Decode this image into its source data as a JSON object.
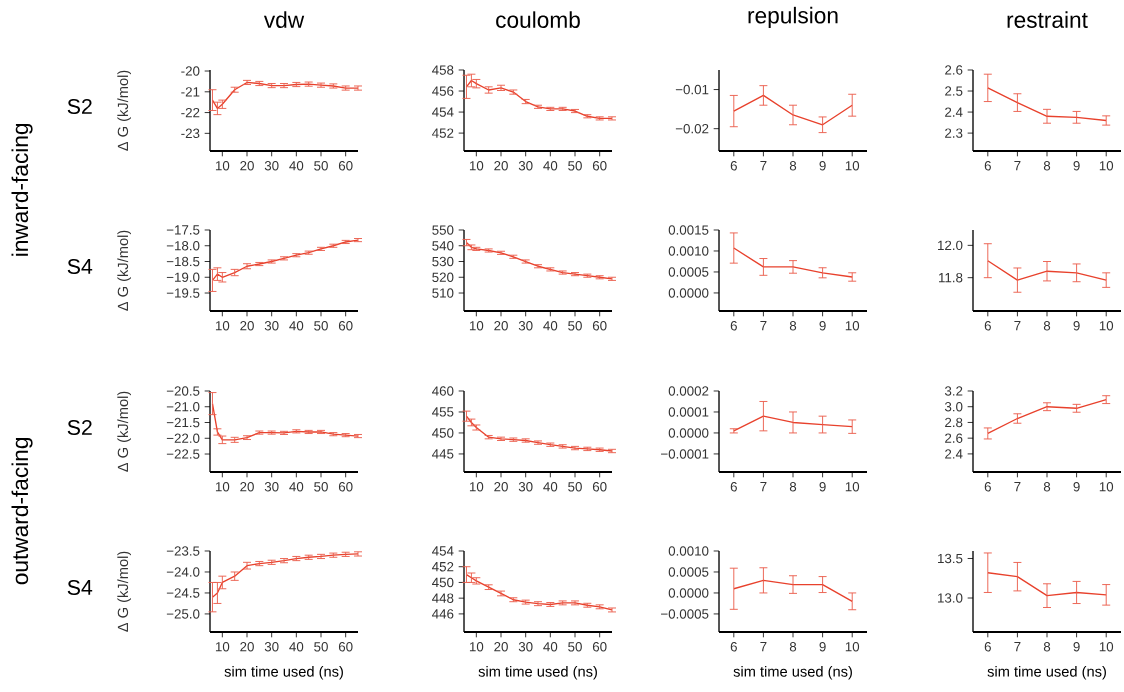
{
  "chart_data": [
    {
      "type": "line",
      "title": "vdw",
      "ylabel": "Δ G (kJ/mol)",
      "annotations": [
        "S2",
        "inward-facing"
      ],
      "color": "#e8412c",
      "x": [
        6,
        8,
        10,
        15,
        20,
        25,
        30,
        35,
        40,
        45,
        50,
        55,
        60,
        65
      ],
      "values": [
        -21.4,
        -21.8,
        -21.6,
        -20.9,
        -20.55,
        -20.6,
        -20.7,
        -20.7,
        -20.65,
        -20.63,
        -20.68,
        -20.72,
        -20.82,
        -20.82
      ],
      "errors": [
        0.5,
        0.3,
        0.2,
        0.12,
        0.1,
        0.1,
        0.1,
        0.1,
        0.1,
        0.1,
        0.1,
        0.1,
        0.1,
        0.1
      ],
      "xlim": [
        5,
        65
      ],
      "ylim": [
        -23.85,
        -19.95
      ],
      "xticks": [
        10,
        20,
        30,
        40,
        50,
        60
      ],
      "yticks": [
        -23,
        -22,
        -21,
        -20
      ]
    },
    {
      "type": "line",
      "title": "coulomb",
      "color": "#e8412c",
      "x": [
        6,
        8,
        10,
        15,
        20,
        25,
        30,
        35,
        40,
        45,
        50,
        55,
        60,
        65
      ],
      "values": [
        456.4,
        457.0,
        456.7,
        456.1,
        456.3,
        455.9,
        455.0,
        454.5,
        454.3,
        454.3,
        454.1,
        453.6,
        453.4,
        453.4
      ],
      "errors": [
        1.1,
        0.6,
        0.4,
        0.3,
        0.25,
        0.2,
        0.2,
        0.15,
        0.15,
        0.15,
        0.15,
        0.15,
        0.15,
        0.15
      ],
      "xlim": [
        5,
        65
      ],
      "ylim": [
        450.3,
        458
      ],
      "xticks": [
        10,
        20,
        30,
        40,
        50,
        60
      ],
      "yticks": [
        452,
        454,
        456,
        458
      ]
    },
    {
      "type": "line",
      "title": "repulsion",
      "color": "#e8412c",
      "x": [
        6,
        7,
        8,
        9,
        10
      ],
      "values": [
        -0.0155,
        -0.0115,
        -0.0165,
        -0.019,
        -0.014
      ],
      "errors": [
        0.004,
        0.0025,
        0.0025,
        0.002,
        0.0028
      ],
      "xlim": [
        5.5,
        10.5
      ],
      "ylim": [
        -0.0257,
        -0.005
      ],
      "xticks": [
        6,
        7,
        8,
        9,
        10
      ],
      "yticks": [
        {
          "value": -0.02,
          "label": "−0.02"
        },
        {
          "value": -0.01,
          "label": "−0.01"
        }
      ]
    },
    {
      "type": "line",
      "title": "restraint",
      "color": "#e8412c",
      "x": [
        6,
        7,
        8,
        9,
        10
      ],
      "values": [
        2.515,
        2.445,
        2.38,
        2.375,
        2.36
      ],
      "errors": [
        0.065,
        0.042,
        0.033,
        0.028,
        0.022
      ],
      "xlim": [
        5.5,
        10.5
      ],
      "ylim": [
        2.215,
        2.6
      ],
      "xticks": [
        6,
        7,
        8,
        9,
        10
      ],
      "yticks": [
        2.3,
        2.4,
        2.5,
        2.6
      ]
    },
    {
      "type": "line",
      "ylabel": "Δ G (kJ/mol)",
      "annotations": [
        "S4"
      ],
      "color": "#e8412c",
      "x": [
        6,
        8,
        10,
        15,
        20,
        25,
        30,
        35,
        40,
        45,
        50,
        55,
        60,
        65
      ],
      "values": [
        -19.1,
        -18.9,
        -19.0,
        -18.85,
        -18.65,
        -18.58,
        -18.5,
        -18.4,
        -18.3,
        -18.22,
        -18.1,
        -18.0,
        -17.88,
        -17.82
      ],
      "errors": [
        0.35,
        0.2,
        0.15,
        0.1,
        0.08,
        0.05,
        0.05,
        0.05,
        0.05,
        0.05,
        0.05,
        0.05,
        0.05,
        0.05
      ],
      "xlim": [
        5,
        65
      ],
      "ylim": [
        -20.07,
        -17.5
      ],
      "xticks": [
        10,
        20,
        30,
        40,
        50,
        60
      ],
      "yticks": [
        {
          "value": -19.5,
          "label": "−19.5"
        },
        {
          "value": -19,
          "label": "−19.0"
        },
        {
          "value": -18.5,
          "label": "−18.5"
        },
        {
          "value": -18,
          "label": "−18.0"
        },
        {
          "value": -17.5,
          "label": "−17.5"
        }
      ]
    },
    {
      "type": "line",
      "color": "#e8412c",
      "x": [
        6,
        8,
        10,
        15,
        20,
        25,
        30,
        35,
        40,
        45,
        50,
        55,
        60,
        65
      ],
      "values": [
        542,
        539,
        538,
        537,
        535.5,
        533,
        530,
        527,
        525,
        523,
        522,
        521,
        520,
        519
      ],
      "errors": [
        2,
        1.5,
        1,
        1,
        1,
        1,
        1,
        1,
        1,
        1,
        1,
        1,
        1,
        1
      ],
      "xlim": [
        5,
        65
      ],
      "ylim": [
        498.6,
        550
      ],
      "xticks": [
        10,
        20,
        30,
        40,
        50,
        60
      ],
      "yticks": [
        510,
        520,
        530,
        540,
        550
      ]
    },
    {
      "type": "line",
      "color": "#e8412c",
      "x": [
        6,
        7,
        8,
        9,
        10
      ],
      "values": [
        0.00107,
        0.00062,
        0.00062,
        0.00048,
        0.00038
      ],
      "errors": [
        0.00036,
        0.0002,
        0.00015,
        0.00012,
        0.0001
      ],
      "xlim": [
        5.5,
        10.5
      ],
      "ylim": [
        -0.00043,
        0.0015
      ],
      "xticks": [
        6,
        7,
        8,
        9,
        10
      ],
      "yticks": [
        {
          "value": 0,
          "label": "0.0000"
        },
        {
          "value": 0.0005,
          "label": "0.0005"
        },
        {
          "value": 0.001,
          "label": "0.0010"
        },
        {
          "value": 0.0015,
          "label": "0.0015"
        }
      ]
    },
    {
      "type": "line",
      "color": "#e8412c",
      "x": [
        6,
        7,
        8,
        9,
        10
      ],
      "values": [
        11.905,
        11.785,
        11.84,
        11.83,
        11.785
      ],
      "errors": [
        0.105,
        0.075,
        0.06,
        0.055,
        0.045
      ],
      "xlim": [
        5.5,
        10.5
      ],
      "ylim": [
        11.594,
        12.095
      ],
      "xticks": [
        6,
        7,
        8,
        9,
        10
      ],
      "yticks": [
        11.8,
        {
          "value": 12,
          "label": "12.0"
        }
      ]
    },
    {
      "type": "line",
      "ylabel": "Δ G (kJ/mol)",
      "annotations": [
        "S2",
        "outward-facing"
      ],
      "color": "#e8412c",
      "x": [
        6,
        8,
        10,
        15,
        20,
        25,
        30,
        35,
        40,
        45,
        50,
        55,
        60,
        65
      ],
      "values": [
        -20.9,
        -21.8,
        -22.05,
        -22.05,
        -21.98,
        -21.82,
        -21.82,
        -21.83,
        -21.78,
        -21.8,
        -21.8,
        -21.87,
        -21.9,
        -21.93
      ],
      "errors": [
        0.35,
        0.1,
        0.12,
        0.08,
        0.06,
        0.05,
        0.05,
        0.05,
        0.05,
        0.05,
        0.05,
        0.05,
        0.05,
        0.05
      ],
      "xlim": [
        5,
        65
      ],
      "ylim": [
        -23.07,
        -20.5
      ],
      "xticks": [
        10,
        20,
        30,
        40,
        50,
        60
      ],
      "yticks": [
        {
          "value": -22.5,
          "label": "−22.5"
        },
        {
          "value": -22,
          "label": "−22.0"
        },
        {
          "value": -21.5,
          "label": "−21.5"
        },
        {
          "value": -21,
          "label": "−21.0"
        },
        {
          "value": -20.5,
          "label": "−20.5"
        }
      ]
    },
    {
      "type": "line",
      "color": "#e8412c",
      "x": [
        6,
        8,
        10,
        15,
        20,
        25,
        30,
        35,
        40,
        45,
        50,
        55,
        60,
        65
      ],
      "values": [
        454,
        452.5,
        451.3,
        449,
        448.6,
        448.4,
        448.2,
        447.7,
        447.2,
        446.8,
        446.4,
        446.2,
        446.0,
        445.7
      ],
      "errors": [
        1.2,
        0.8,
        0.6,
        0.4,
        0.4,
        0.4,
        0.4,
        0.4,
        0.4,
        0.4,
        0.4,
        0.4,
        0.4,
        0.4
      ],
      "xlim": [
        5,
        65
      ],
      "ylim": [
        440.7,
        460
      ],
      "xticks": [
        10,
        20,
        30,
        40,
        50,
        60
      ],
      "yticks": [
        445,
        450,
        455,
        460
      ]
    },
    {
      "type": "line",
      "color": "#e8412c",
      "x": [
        6,
        7,
        8,
        9,
        10
      ],
      "values": [
        1e-05,
        8e-05,
        5e-05,
        4e-05,
        3e-05
      ],
      "errors": [
        1e-05,
        7e-05,
        5e-05,
        4e-05,
        3.2e-05
      ],
      "xlim": [
        5.5,
        10.5
      ],
      "ylim": [
        -0.000186,
        0.0002
      ],
      "xticks": [
        6,
        7,
        8,
        9,
        10
      ],
      "yticks": [
        {
          "value": -0.0001,
          "label": "−0.0001"
        },
        {
          "value": 0,
          "label": "0.0000"
        },
        {
          "value": 0.0001,
          "label": "0.0001"
        },
        {
          "value": 0.0002,
          "label": "0.0002"
        }
      ]
    },
    {
      "type": "line",
      "color": "#e8412c",
      "x": [
        6,
        7,
        8,
        9,
        10
      ],
      "values": [
        2.66,
        2.85,
        3.0,
        2.98,
        3.09
      ],
      "errors": [
        0.07,
        0.06,
        0.05,
        0.05,
        0.05
      ],
      "xlim": [
        5.5,
        10.5
      ],
      "ylim": [
        2.17,
        3.2
      ],
      "xticks": [
        6,
        7,
        8,
        9,
        10
      ],
      "yticks": [
        2.4,
        2.6,
        2.8,
        {
          "value": 3,
          "label": "3.0"
        },
        3.2
      ]
    },
    {
      "type": "line",
      "ylabel": "Δ G (kJ/mol)",
      "xlabel": "sim time used (ns)",
      "annotations": [
        "S4"
      ],
      "color": "#e8412c",
      "x": [
        6,
        8,
        10,
        15,
        20,
        25,
        30,
        35,
        40,
        45,
        50,
        55,
        60,
        65
      ],
      "values": [
        -24.6,
        -24.5,
        -24.25,
        -24.1,
        -23.85,
        -23.8,
        -23.77,
        -23.73,
        -23.68,
        -23.65,
        -23.63,
        -23.6,
        -23.58,
        -23.57
      ],
      "errors": [
        0.35,
        0.25,
        0.15,
        0.1,
        0.08,
        0.05,
        0.05,
        0.05,
        0.05,
        0.05,
        0.05,
        0.05,
        0.05,
        0.05
      ],
      "xlim": [
        5,
        65
      ],
      "ylim": [
        -25.43,
        -23.5
      ],
      "xticks": [
        10,
        20,
        30,
        40,
        50,
        60
      ],
      "yticks": [
        {
          "value": -25,
          "label": "−25.0"
        },
        {
          "value": -24.5,
          "label": "−24.5"
        },
        {
          "value": -24,
          "label": "−24.0"
        },
        {
          "value": -23.5,
          "label": "−23.5"
        }
      ]
    },
    {
      "type": "line",
      "xlabel": "sim time used (ns)",
      "color": "#e8412c",
      "x": [
        6,
        8,
        10,
        15,
        20,
        25,
        30,
        35,
        40,
        45,
        50,
        55,
        60,
        65
      ],
      "values": [
        451,
        450.6,
        450.2,
        449.4,
        448.6,
        447.8,
        447.5,
        447.3,
        447.2,
        447.4,
        447.4,
        447.1,
        446.9,
        446.5
      ],
      "errors": [
        1,
        0.6,
        0.4,
        0.3,
        0.3,
        0.25,
        0.25,
        0.25,
        0.25,
        0.25,
        0.25,
        0.25,
        0.25,
        0.25
      ],
      "xlim": [
        5,
        65
      ],
      "ylim": [
        443.7,
        454
      ],
      "xticks": [
        10,
        20,
        30,
        40,
        50,
        60
      ],
      "yticks": [
        446,
        448,
        450,
        452,
        454
      ]
    },
    {
      "type": "line",
      "xlabel": "sim time used (ns)",
      "color": "#e8412c",
      "x": [
        6,
        7,
        8,
        9,
        10
      ],
      "values": [
        0.0001,
        0.0003,
        0.0002,
        0.0002,
        -0.0002
      ],
      "errors": [
        0.00049,
        0.0003,
        0.00021,
        0.00019,
        0.0002
      ],
      "xlim": [
        5.5,
        10.5
      ],
      "ylim": [
        -0.00093,
        0.001
      ],
      "xticks": [
        6,
        7,
        8,
        9,
        10
      ],
      "yticks": [
        {
          "value": -0.0005,
          "label": "−0.0005"
        },
        {
          "value": 0,
          "label": "0.0000"
        },
        {
          "value": 0.0005,
          "label": "0.0005"
        },
        {
          "value": 0.001,
          "label": "0.0010"
        }
      ]
    },
    {
      "type": "line",
      "xlabel": "sim time used (ns)",
      "color": "#e8412c",
      "x": [
        6,
        7,
        8,
        9,
        10
      ],
      "values": [
        13.32,
        13.27,
        13.03,
        13.07,
        13.04
      ],
      "errors": [
        0.25,
        0.18,
        0.15,
        0.14,
        0.13
      ],
      "xlim": [
        5.5,
        10.5
      ],
      "ylim": [
        12.57,
        13.595
      ],
      "xticks": [
        6,
        7,
        8,
        9,
        10
      ],
      "yticks": [
        {
          "value": 13,
          "label": "13.0"
        },
        13.5
      ]
    }
  ]
}
